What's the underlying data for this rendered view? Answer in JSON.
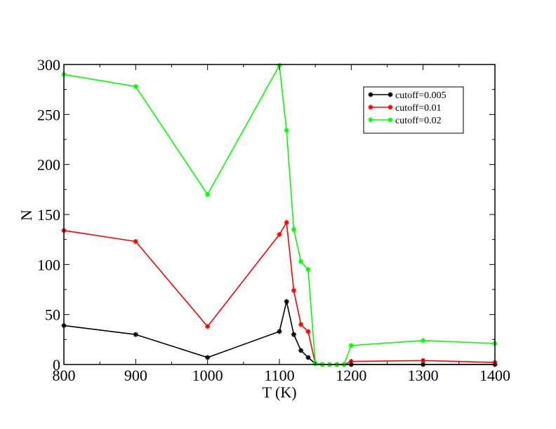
{
  "chart_data": {
    "type": "line",
    "title": "",
    "xlabel": "T (K)",
    "ylabel": "N",
    "xlim": [
      800,
      1400
    ],
    "ylim": [
      0,
      300
    ],
    "xticks": [
      800,
      900,
      1000,
      1100,
      1200,
      1300,
      1400
    ],
    "yticks": [
      0,
      50,
      100,
      150,
      200,
      250,
      300
    ],
    "grid": false,
    "legend_position": "top-right",
    "series": [
      {
        "name": "cutoff=0.005",
        "color": "#000000",
        "points": [
          [
            800,
            39
          ],
          [
            900,
            30
          ],
          [
            1000,
            7
          ],
          [
            1100,
            33
          ],
          [
            1110,
            63
          ],
          [
            1120,
            30
          ],
          [
            1130,
            14
          ],
          [
            1140,
            7
          ],
          [
            1150,
            1
          ],
          [
            1160,
            0
          ],
          [
            1170,
            0
          ],
          [
            1180,
            0
          ],
          [
            1190,
            0
          ],
          [
            1200,
            0
          ],
          [
            1300,
            0
          ],
          [
            1400,
            0
          ]
        ]
      },
      {
        "name": "cutoff=0.01",
        "color": "#ff0000",
        "points": [
          [
            800,
            134
          ],
          [
            900,
            123
          ],
          [
            1000,
            38
          ],
          [
            1100,
            130
          ],
          [
            1110,
            142
          ],
          [
            1120,
            74
          ],
          [
            1130,
            40
          ],
          [
            1140,
            33
          ],
          [
            1150,
            1
          ],
          [
            1160,
            0
          ],
          [
            1170,
            0
          ],
          [
            1180,
            0
          ],
          [
            1190,
            0
          ],
          [
            1200,
            3
          ],
          [
            1300,
            4
          ],
          [
            1400,
            2
          ]
        ]
      },
      {
        "name": "cutoff=0.02",
        "color": "#00ff00",
        "points": [
          [
            800,
            290
          ],
          [
            900,
            278
          ],
          [
            1000,
            170
          ],
          [
            1100,
            299
          ],
          [
            1110,
            234
          ],
          [
            1120,
            135
          ],
          [
            1130,
            103
          ],
          [
            1140,
            95
          ],
          [
            1150,
            1
          ],
          [
            1160,
            0
          ],
          [
            1170,
            0
          ],
          [
            1180,
            0
          ],
          [
            1190,
            0
          ],
          [
            1200,
            19
          ],
          [
            1300,
            24
          ],
          [
            1400,
            21
          ]
        ]
      }
    ]
  }
}
